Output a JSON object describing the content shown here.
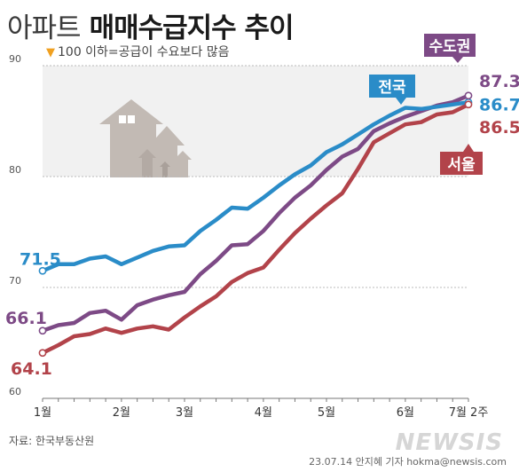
{
  "title": {
    "light": "아파트",
    "bold": "매매수급지수 추이"
  },
  "note": {
    "marker": "▼",
    "text": "100 이하=공급이 수요보다 많음"
  },
  "footer": {
    "source": "자료: 한국부동산원",
    "credit": "23.07.14 안지혜 기자 hokma@newsis.com",
    "watermark": "NEWSIS"
  },
  "colors": {
    "national": "#2a8cc8",
    "capital": "#7d4a86",
    "seoul": "#b2434a",
    "grid": "#bbbbbb",
    "axis": "#777777",
    "house": "#c2bab4"
  },
  "icons": [
    "house-icon"
  ],
  "chart_data": {
    "type": "line",
    "ylim": [
      60,
      90
    ],
    "yticks": [
      60,
      70,
      80,
      90
    ],
    "grid": true,
    "x_count": 28,
    "x_labels": [
      {
        "i": 0,
        "label": "1월"
      },
      {
        "i": 5,
        "label": "2월"
      },
      {
        "i": 9,
        "label": "3월"
      },
      {
        "i": 14,
        "label": "4월"
      },
      {
        "i": 18,
        "label": "5월"
      },
      {
        "i": 23,
        "label": "6월"
      },
      {
        "i": 27,
        "label": "7월 2주"
      }
    ],
    "series": [
      {
        "name": "전국",
        "color": "#2a8cc8",
        "start_label": "71.5",
        "end_label": "86.7",
        "values": [
          71.5,
          72.1,
          72.1,
          72.6,
          72.8,
          72.1,
          72.7,
          73.3,
          73.7,
          73.8,
          75.1,
          76.1,
          77.2,
          77.1,
          78.1,
          79.2,
          80.2,
          81.0,
          82.2,
          82.9,
          83.8,
          84.7,
          85.5,
          86.2,
          86.1,
          86.3,
          86.5,
          86.7
        ]
      },
      {
        "name": "수도권",
        "color": "#7d4a86",
        "start_label": "66.1",
        "end_label": "87.3",
        "values": [
          66.1,
          66.6,
          66.8,
          67.7,
          67.9,
          67.1,
          68.4,
          68.9,
          69.3,
          69.6,
          71.2,
          72.4,
          73.8,
          73.9,
          75.1,
          76.7,
          78.1,
          79.2,
          80.6,
          81.8,
          82.5,
          84.1,
          84.8,
          85.4,
          85.9,
          86.4,
          86.7,
          87.3
        ]
      },
      {
        "name": "서울",
        "color": "#b2434a",
        "start_label": "64.1",
        "end_label": "86.5",
        "values": [
          64.1,
          64.8,
          65.6,
          65.8,
          66.3,
          65.9,
          66.3,
          66.5,
          66.2,
          67.3,
          68.3,
          69.2,
          70.5,
          71.3,
          71.8,
          73.4,
          74.9,
          76.2,
          77.4,
          78.5,
          80.7,
          83.1,
          83.9,
          84.7,
          84.9,
          85.6,
          85.8,
          86.5
        ]
      }
    ]
  }
}
